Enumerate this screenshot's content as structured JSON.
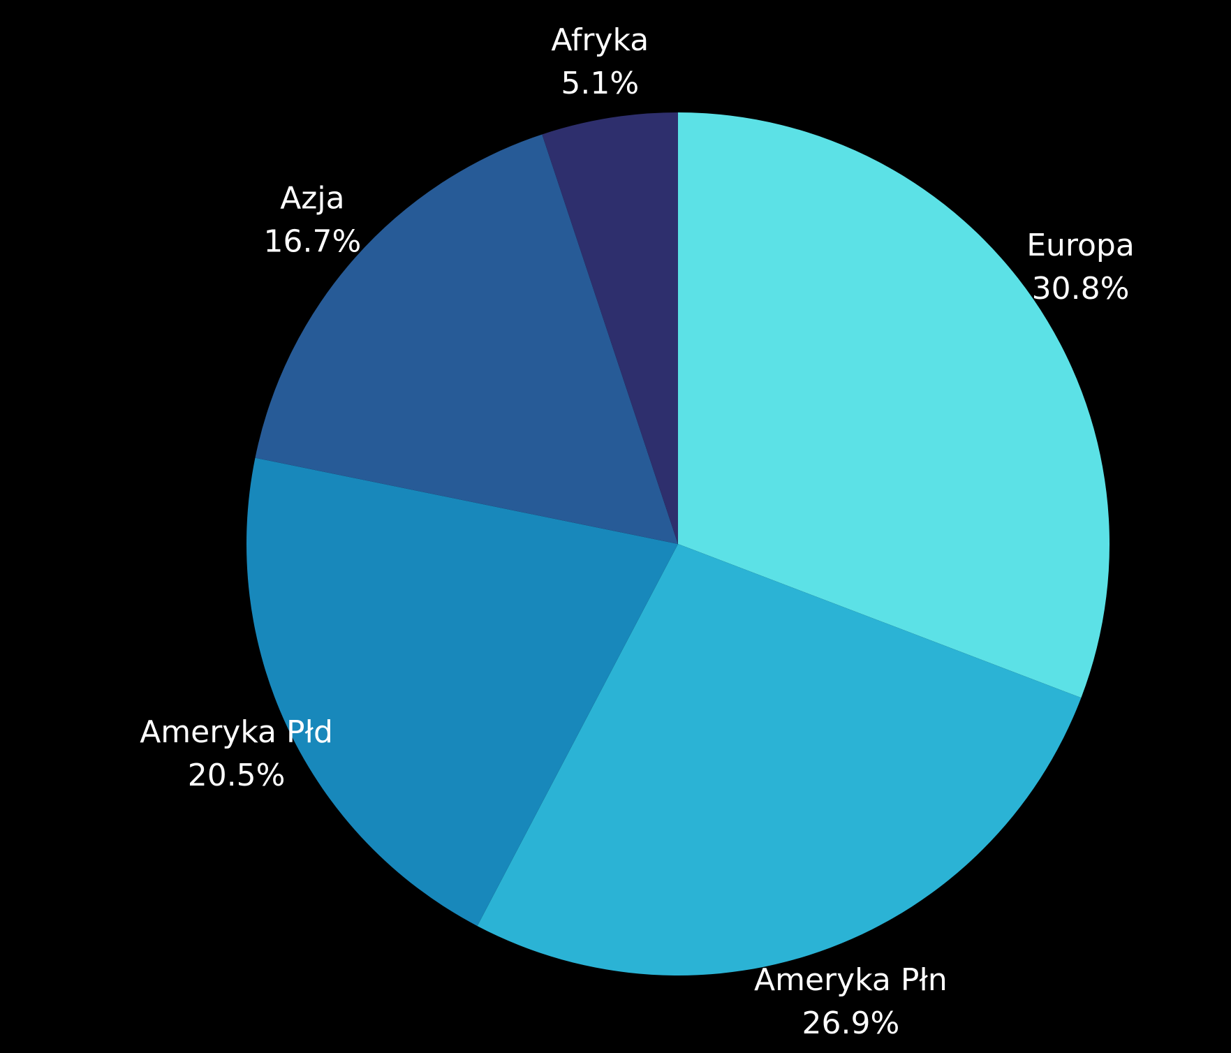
{
  "chart_data": {
    "type": "pie",
    "title": "",
    "start_angle": "top",
    "direction": "clockwise",
    "slices": [
      {
        "label": "Europa",
        "value": 30.8,
        "value_label": "30.8%",
        "color": "#5ce1e6"
      },
      {
        "label": "Ameryka Płn",
        "value": 26.9,
        "value_label": "26.9%",
        "color": "#2bb3d5"
      },
      {
        "label": "Ameryka Płd",
        "value": 20.5,
        "value_label": "20.5%",
        "color": "#1888bb"
      },
      {
        "label": "Azja",
        "value": 16.7,
        "value_label": "16.7%",
        "color": "#275b97"
      },
      {
        "label": "Afryka",
        "value": 5.1,
        "value_label": "5.1%",
        "color": "#2e2f6d"
      }
    ],
    "background": "#000000",
    "label_color": "#ffffff"
  }
}
